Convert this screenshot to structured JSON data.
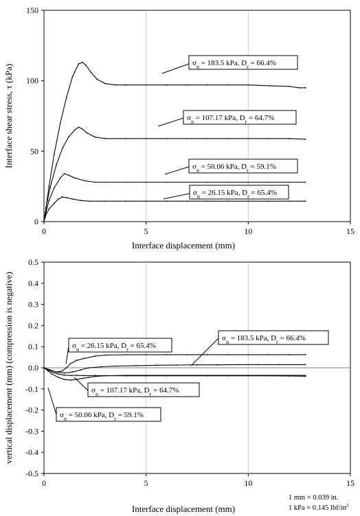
{
  "chart_data": [
    {
      "type": "line",
      "xlabel": "Interface displacement (mm)",
      "ylabel": "Interface shear stress, τ (kPa)",
      "xlim": [
        0,
        15
      ],
      "ylim": [
        0,
        150
      ],
      "xticks": [
        0,
        5,
        10,
        15
      ],
      "yticks": [
        0,
        50,
        100,
        150
      ],
      "grid": "vertical",
      "legend": "none",
      "annotations": [
        {
          "sigma": "σ",
          "sub1": "n",
          "mid": " = 183.5 kPa, D",
          "sub2": "r",
          "tail": " = 66.4%"
        },
        {
          "sigma": "σ",
          "sub1": "n",
          "mid": " = 107.17 kPa, D",
          "sub2": "r",
          "tail": " = 64.7%"
        },
        {
          "sigma": "σ",
          "sub1": "n",
          "mid": " = 50.06 kPa, D",
          "sub2": "r",
          "tail": " = 59.1%"
        },
        {
          "sigma": "σ",
          "sub1": "n",
          "mid": " = 26.15 kPa, D",
          "sub2": "r",
          "tail": " = 65.4%"
        }
      ],
      "series": [
        {
          "x": [
            0,
            0.1,
            0.25,
            0.5,
            0.8,
            1.1,
            1.4,
            1.7,
            1.9,
            2.05,
            2.3,
            2.6,
            3.0,
            3.5,
            4,
            5,
            6,
            7,
            8,
            9,
            10,
            11,
            12,
            12.5,
            12.8
          ],
          "y": [
            0,
            10,
            25,
            48,
            70,
            88,
            103,
            112,
            113,
            111,
            106,
            101,
            98,
            97,
            97,
            97,
            97,
            97,
            97,
            97,
            97,
            96.5,
            96,
            95,
            95
          ]
        },
        {
          "x": [
            0,
            0.1,
            0.3,
            0.6,
            0.9,
            1.2,
            1.5,
            1.7,
            1.85,
            2.1,
            2.5,
            3.0,
            4,
            5,
            6,
            7,
            8,
            9,
            10,
            11,
            12,
            12.8
          ],
          "y": [
            0,
            10,
            24,
            40,
            52,
            60,
            65,
            67,
            66,
            63,
            60,
            59,
            59,
            59,
            59,
            59,
            59,
            59,
            59,
            59,
            59,
            58.5
          ]
        },
        {
          "x": [
            0,
            0.1,
            0.25,
            0.5,
            0.8,
            1.0,
            1.2,
            1.5,
            2.0,
            2.5,
            3.0,
            4,
            5,
            6,
            7,
            8,
            9,
            10,
            11,
            12,
            12.8
          ],
          "y": [
            0,
            7,
            15,
            24,
            31,
            34,
            33,
            31,
            29,
            28,
            28,
            28,
            28,
            28,
            28,
            28,
            28,
            28,
            28,
            28,
            28
          ]
        },
        {
          "x": [
            0,
            0.1,
            0.25,
            0.5,
            0.7,
            0.9,
            1.1,
            1.4,
            1.8,
            2.2,
            3.0,
            4,
            5,
            6,
            7,
            8,
            9,
            10,
            11,
            12,
            12.8
          ],
          "y": [
            0,
            5,
            9,
            13,
            16,
            17.5,
            17,
            16,
            15,
            14.5,
            14.5,
            14.5,
            14.5,
            14.5,
            14.5,
            14.5,
            14.5,
            14.5,
            14.5,
            14.5,
            14.5
          ]
        }
      ]
    },
    {
      "type": "line",
      "xlabel": "Interface displacement (mm)",
      "ylabel": "vertical displacement (mm) (compression is negative)",
      "xlim": [
        0,
        15
      ],
      "ylim": [
        -0.5,
        0.5
      ],
      "xticks": [
        0,
        5,
        10,
        15
      ],
      "yticks": [
        -0.5,
        -0.4,
        -0.3,
        -0.2,
        -0.1,
        0.0,
        0.1,
        0.2,
        0.3,
        0.4,
        0.5
      ],
      "grid": "vertical",
      "legend": "none",
      "annotations": [
        {
          "sigma": "σ",
          "sub1": "n",
          "mid": " = 26.15 kPa, D",
          "sub2": "r",
          "tail": " = 65.4%"
        },
        {
          "sigma": "σ",
          "sub1": "n",
          "mid": " = 183.5 kPa, D",
          "sub2": "r",
          "tail": " = 66.4%"
        },
        {
          "sigma": "σ",
          "sub1": "n",
          "mid": " = 107.17 kPa, D",
          "sub2": "r",
          "tail": " = 64.7%"
        },
        {
          "sigma": "σ",
          "sub1": "n",
          "mid": " = 50.06 kPa, D",
          "sub2": "r",
          "tail": " = 59.1%"
        }
      ],
      "notes": [
        {
          "text": "1 mm = 0.039 in."
        },
        {
          "text": "1 kPa = 0.145 lbf/in",
          "sup": "2"
        }
      ],
      "series": [
        {
          "x": [
            0,
            0.3,
            0.6,
            0.9,
            1.1,
            1.3,
            1.6,
            2.0,
            2.5,
            3.0,
            4,
            5,
            6,
            7,
            8,
            9,
            10,
            11,
            12,
            12.8
          ],
          "y": [
            0,
            -0.01,
            -0.02,
            -0.015,
            0.0,
            0.02,
            0.035,
            0.045,
            0.055,
            0.06,
            0.062,
            0.062,
            0.062,
            0.062,
            0.062,
            0.062,
            0.062,
            0.062,
            0.062,
            0.062
          ]
        },
        {
          "x": [
            0,
            0.3,
            0.6,
            1.0,
            1.4,
            1.8,
            2.2,
            2.8,
            3.5,
            4.5,
            5.5,
            6.5,
            7.5,
            8.5,
            9.5,
            10.5,
            11.5,
            12.8
          ],
          "y": [
            0,
            -0.01,
            -0.02,
            -0.025,
            -0.02,
            -0.01,
            0.0,
            0.005,
            0.008,
            0.01,
            0.012,
            0.013,
            0.014,
            0.014,
            0.015,
            0.015,
            0.015,
            0.015
          ]
        },
        {
          "x": [
            0,
            0.2,
            0.4,
            0.7,
            1.0,
            1.3,
            1.6,
            1.9,
            2.2,
            2.6,
            3,
            4,
            5,
            6,
            7,
            8,
            9,
            10,
            11,
            12,
            12.8
          ],
          "y": [
            0,
            -0.015,
            -0.03,
            -0.045,
            -0.055,
            -0.058,
            -0.055,
            -0.05,
            -0.045,
            -0.04,
            -0.038,
            -0.036,
            -0.036,
            -0.036,
            -0.036,
            -0.036,
            -0.036,
            -0.036,
            -0.036,
            -0.036,
            -0.036
          ]
        },
        {
          "x": [
            0,
            0.2,
            0.4,
            0.7,
            1.0,
            1.3,
            1.6,
            2.0,
            2.5,
            3,
            4,
            5,
            6,
            7,
            8,
            9,
            10,
            11,
            12,
            12.8
          ],
          "y": [
            0,
            -0.01,
            -0.02,
            -0.03,
            -0.035,
            -0.036,
            -0.036,
            -0.037,
            -0.037,
            -0.037,
            -0.038,
            -0.038,
            -0.038,
            -0.038,
            -0.038,
            -0.038,
            -0.038,
            -0.038,
            -0.039,
            -0.04
          ]
        }
      ]
    }
  ]
}
